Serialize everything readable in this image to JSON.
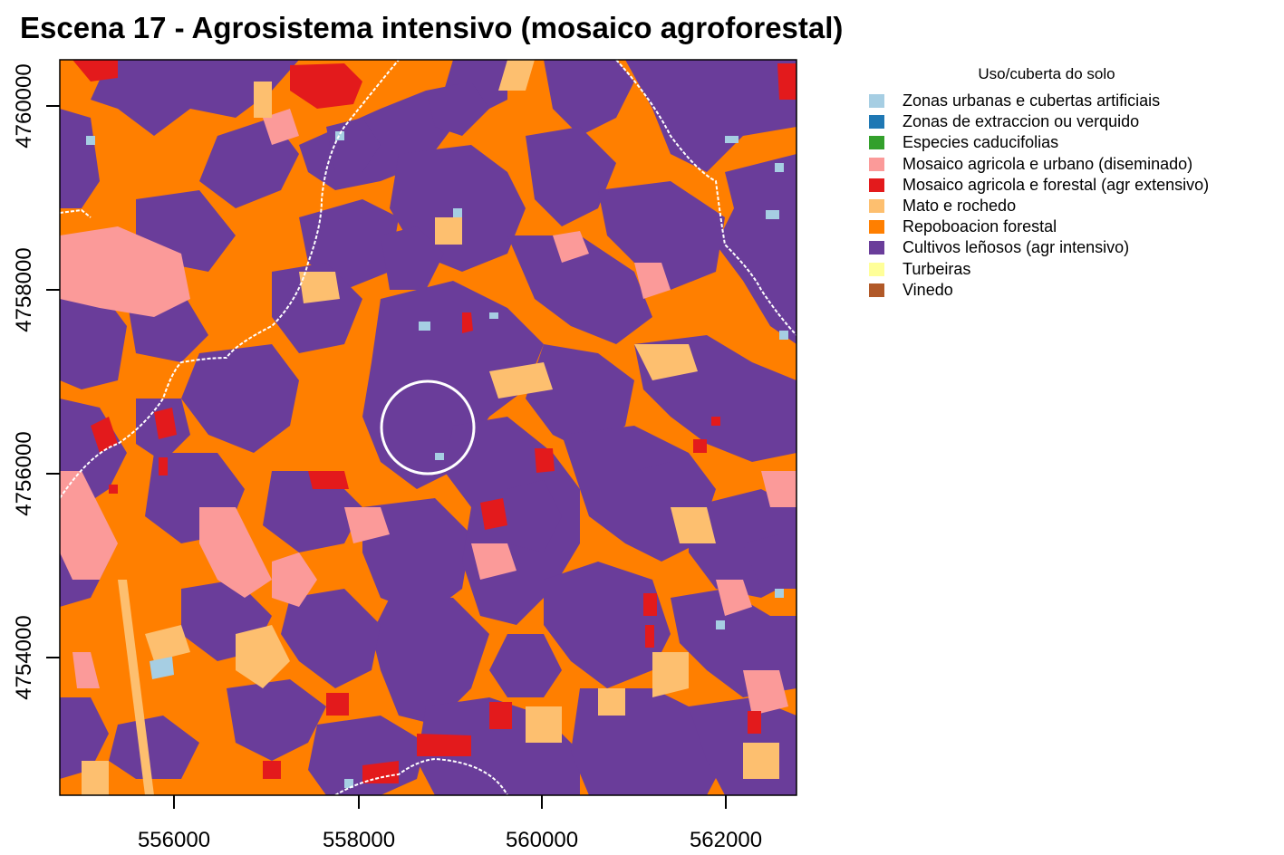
{
  "title": "Escena 17 - Agrosistema intensivo (mosaico agroforestal)",
  "axes": {
    "x_ticks": [
      "556000",
      "558000",
      "560000",
      "562000"
    ],
    "y_ticks": [
      "4754000",
      "4756000",
      "4758000",
      "4760000"
    ]
  },
  "legend": {
    "title": "Uso/cuberta do solo",
    "items": [
      {
        "label": "Zonas urbanas e cubertas artificiais",
        "color": "#A6CEE3"
      },
      {
        "label": "Zonas de extraccion ou verquido",
        "color": "#1F78B4"
      },
      {
        "label": "Especies caducifolias",
        "color": "#33A02C"
      },
      {
        "label": "Mosaico agricola e urbano (diseminado)",
        "color": "#FB9A99"
      },
      {
        "label": "Mosaico agricola e forestal (agr extensivo)",
        "color": "#E31A1C"
      },
      {
        "label": "Mato e rochedo",
        "color": "#FDBF6F"
      },
      {
        "label": "Repoboacion forestal",
        "color": "#FF7F00"
      },
      {
        "label": "Cultivos leñosos (agr intensivo)",
        "color": "#6A3D9A"
      },
      {
        "label": "Turbeiras",
        "color": "#FFFF99"
      },
      {
        "label": "Vinedo",
        "color": "#B15928"
      }
    ]
  }
}
